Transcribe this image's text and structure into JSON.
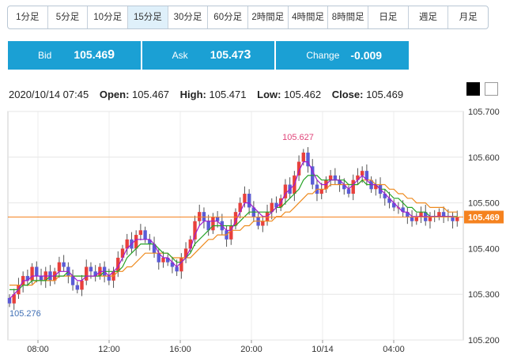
{
  "timeframes": [
    {
      "label": "1分足",
      "active": false
    },
    {
      "label": "5分足",
      "active": false
    },
    {
      "label": "10分足",
      "active": false
    },
    {
      "label": "15分足",
      "active": true
    },
    {
      "label": "30分足",
      "active": false
    },
    {
      "label": "60分足",
      "active": false
    },
    {
      "label": "2時間足",
      "active": false
    },
    {
      "label": "4時間足",
      "active": false
    },
    {
      "label": "8時間足",
      "active": false
    },
    {
      "label": "日足",
      "active": false
    },
    {
      "label": "週足",
      "active": false
    },
    {
      "label": "月足",
      "active": false
    }
  ],
  "quote": {
    "bid_label": "Bid",
    "bid_main": "105.46",
    "bid_last": "9",
    "ask_label": "Ask",
    "ask_main": "105.47",
    "ask_last": "3",
    "change_label": "Change",
    "change_value": "-0.009",
    "color": "#1ba0d4"
  },
  "ohlc": {
    "datetime": "2020/10/14 07:45",
    "open_label": "Open:",
    "open": "105.467",
    "high_label": "High:",
    "high": "105.471",
    "low_label": "Low:",
    "low": "105.462",
    "close_label": "Close:",
    "close": "105.469"
  },
  "chart_data": {
    "type": "candlestick",
    "ylim": [
      105.2,
      105.7
    ],
    "yticks": [
      "105.700",
      "105.600",
      "105.500",
      "105.400",
      "105.300",
      "105.200"
    ],
    "xticks": [
      "08:00",
      "12:00",
      "16:00",
      "20:00",
      "10/14",
      "04:00"
    ],
    "current_price": "105.469",
    "annotations": {
      "high": "105.627",
      "low": "105.276"
    },
    "colors": {
      "up": "#e8403c",
      "down": "#5b5bd6",
      "ma_fast": "#a01ad0",
      "ma_mid": "#27a327",
      "ma_slow": "#ee8a1e",
      "price_line": "#f5821f",
      "high_label": "#e0457a",
      "low_label": "#3f6fb5"
    },
    "close": [
      105.28,
      105.3,
      105.32,
      105.34,
      105.33,
      105.36,
      105.34,
      105.33,
      105.35,
      105.33,
      105.35,
      105.37,
      105.36,
      105.34,
      105.32,
      105.31,
      105.33,
      105.36,
      105.35,
      105.34,
      105.36,
      105.34,
      105.33,
      105.35,
      105.38,
      105.4,
      105.42,
      105.4,
      105.43,
      105.44,
      105.42,
      105.41,
      105.39,
      105.37,
      105.38,
      105.37,
      105.36,
      105.35,
      105.38,
      105.4,
      105.42,
      105.46,
      105.48,
      105.46,
      105.44,
      105.47,
      105.46,
      105.44,
      105.42,
      105.45,
      105.48,
      105.5,
      105.52,
      105.49,
      105.47,
      105.45,
      105.46,
      105.48,
      105.5,
      105.49,
      105.51,
      105.54,
      105.52,
      105.56,
      105.59,
      105.61,
      105.58,
      105.54,
      105.52,
      105.53,
      105.55,
      105.56,
      105.55,
      105.54,
      105.53,
      105.52,
      105.55,
      105.56,
      105.57,
      105.55,
      105.53,
      105.54,
      105.52,
      105.51,
      105.5,
      105.49,
      105.49,
      105.48,
      105.47,
      105.46,
      105.47,
      105.48,
      105.46,
      105.47,
      105.47,
      105.48,
      105.47,
      105.47,
      105.46,
      105.469
    ],
    "ma_fast": [
      105.29,
      105.3,
      105.31,
      105.33,
      105.33,
      105.34,
      105.34,
      105.34,
      105.34,
      105.34,
      105.34,
      105.35,
      105.35,
      105.35,
      105.34,
      105.33,
      105.33,
      105.34,
      105.34,
      105.34,
      105.35,
      105.35,
      105.34,
      105.35,
      105.36,
      105.38,
      105.4,
      105.41,
      105.42,
      105.42,
      105.42,
      105.42,
      105.41,
      105.39,
      105.38,
      105.38,
      105.37,
      105.36,
      105.37,
      105.38,
      105.4,
      105.43,
      105.45,
      105.46,
      105.46,
      105.46,
      105.46,
      105.45,
      105.44,
      105.44,
      105.46,
      105.48,
      105.5,
      105.5,
      105.49,
      105.48,
      105.47,
      105.47,
      105.48,
      105.49,
      105.5,
      105.52,
      105.53,
      105.54,
      105.57,
      105.59,
      105.59,
      105.57,
      105.55,
      105.54,
      105.54,
      105.55,
      105.55,
      105.55,
      105.54,
      105.53,
      105.54,
      105.55,
      105.56,
      105.55,
      105.54,
      105.54,
      105.53,
      105.52,
      105.51,
      105.5,
      105.49,
      105.48,
      105.48,
      105.47,
      105.47,
      105.47,
      105.47,
      105.47,
      105.47,
      105.47,
      105.47,
      105.47,
      105.47,
      105.468
    ],
    "ma_mid": [
      105.31,
      105.31,
      105.31,
      105.32,
      105.32,
      105.33,
      105.33,
      105.33,
      105.33,
      105.34,
      105.34,
      105.34,
      105.34,
      105.35,
      105.34,
      105.34,
      105.34,
      105.34,
      105.34,
      105.34,
      105.34,
      105.35,
      105.35,
      105.35,
      105.35,
      105.36,
      105.38,
      105.39,
      105.4,
      105.41,
      105.41,
      105.41,
      105.41,
      105.4,
      105.39,
      105.39,
      105.38,
      105.37,
      105.37,
      105.38,
      105.39,
      105.41,
      105.42,
      105.43,
      105.44,
      105.45,
      105.45,
      105.45,
      105.45,
      105.45,
      105.45,
      105.46,
      105.47,
      105.48,
      105.48,
      105.48,
      105.48,
      105.48,
      105.48,
      105.49,
      105.49,
      105.5,
      105.51,
      105.52,
      105.53,
      105.55,
      105.56,
      105.56,
      105.56,
      105.55,
      105.55,
      105.55,
      105.55,
      105.55,
      105.55,
      105.54,
      105.54,
      105.54,
      105.55,
      105.54,
      105.54,
      105.54,
      105.53,
      105.53,
      105.52,
      105.51,
      105.51,
      105.5,
      105.49,
      105.49,
      105.48,
      105.48,
      105.48,
      105.47,
      105.47,
      105.47,
      105.47,
      105.47,
      105.47,
      105.47
    ],
    "ma_slow": [
      105.32,
      105.32,
      105.32,
      105.32,
      105.32,
      105.32,
      105.33,
      105.33,
      105.33,
      105.33,
      105.33,
      105.34,
      105.34,
      105.34,
      105.34,
      105.34,
      105.34,
      105.34,
      105.34,
      105.34,
      105.34,
      105.34,
      105.34,
      105.34,
      105.35,
      105.35,
      105.36,
      105.36,
      105.37,
      105.38,
      105.39,
      105.39,
      105.39,
      105.39,
      105.39,
      105.39,
      105.38,
      105.38,
      105.38,
      105.38,
      105.38,
      105.39,
      105.4,
      105.41,
      105.42,
      105.42,
      105.43,
      105.43,
      105.43,
      105.44,
      105.44,
      105.44,
      105.45,
      105.45,
      105.46,
      105.46,
      105.46,
      105.46,
      105.46,
      105.47,
      105.47,
      105.48,
      105.48,
      105.49,
      105.5,
      105.51,
      105.52,
      105.52,
      105.53,
      105.53,
      105.53,
      105.54,
      105.54,
      105.54,
      105.54,
      105.54,
      105.54,
      105.54,
      105.55,
      105.55,
      105.55,
      105.54,
      105.54,
      105.54,
      105.53,
      105.53,
      105.52,
      105.52,
      105.51,
      105.51,
      105.5,
      105.5,
      105.5,
      105.49,
      105.49,
      105.49,
      105.49,
      105.48,
      105.48,
      105.48
    ]
  }
}
